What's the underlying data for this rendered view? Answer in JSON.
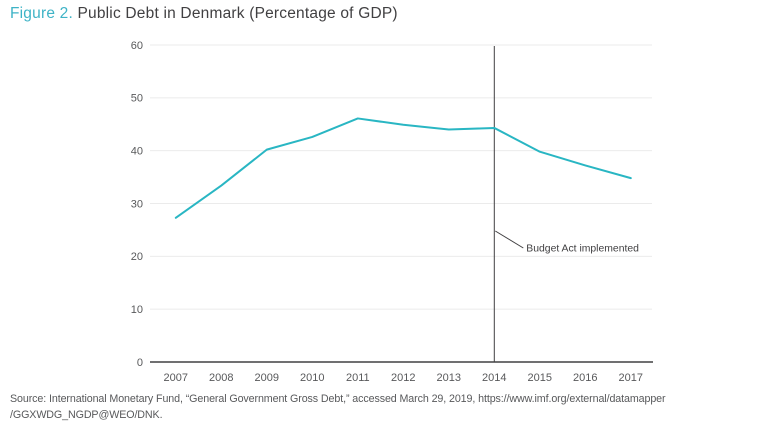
{
  "title": {
    "figure_label": "Figure 2.",
    "figure_title": "Public Debt in Denmark (Percentage of GDP)"
  },
  "source": {
    "line1": "Source: International Monetary Fund, “General Government Gross Debt,” accessed March 29, 2019, https://www.imf.org/external/datamapper",
    "line2": "/GGXWDG_NGDP@WEO/DNK."
  },
  "colors": {
    "accent_teal": "#3eb3c6",
    "line_teal": "#29b6c3",
    "dark": "#414042",
    "axis_text": "#58595b",
    "grid": "#ebebeb",
    "source_text": "#58595b"
  },
  "chart_data": {
    "type": "line",
    "title": "Public Debt in Denmark (Percentage of GDP)",
    "x": [
      2007,
      2008,
      2009,
      2010,
      2011,
      2012,
      2013,
      2014,
      2015,
      2016,
      2017
    ],
    "series": [
      {
        "name": "General government gross debt (% of GDP)",
        "values": [
          27.3,
          33.4,
          40.2,
          42.6,
          46.1,
          44.9,
          44.0,
          44.3,
          39.8,
          37.2,
          34.8
        ]
      }
    ],
    "xlabel": "",
    "ylabel": "",
    "ylim": [
      0,
      60
    ],
    "yticks": [
      0,
      10,
      20,
      30,
      40,
      50,
      60
    ],
    "grid": "horizontal-light",
    "legend": "none",
    "annotation": {
      "text": "Budget Act implemented",
      "at_x": 2014,
      "style": "vertical-line"
    }
  }
}
